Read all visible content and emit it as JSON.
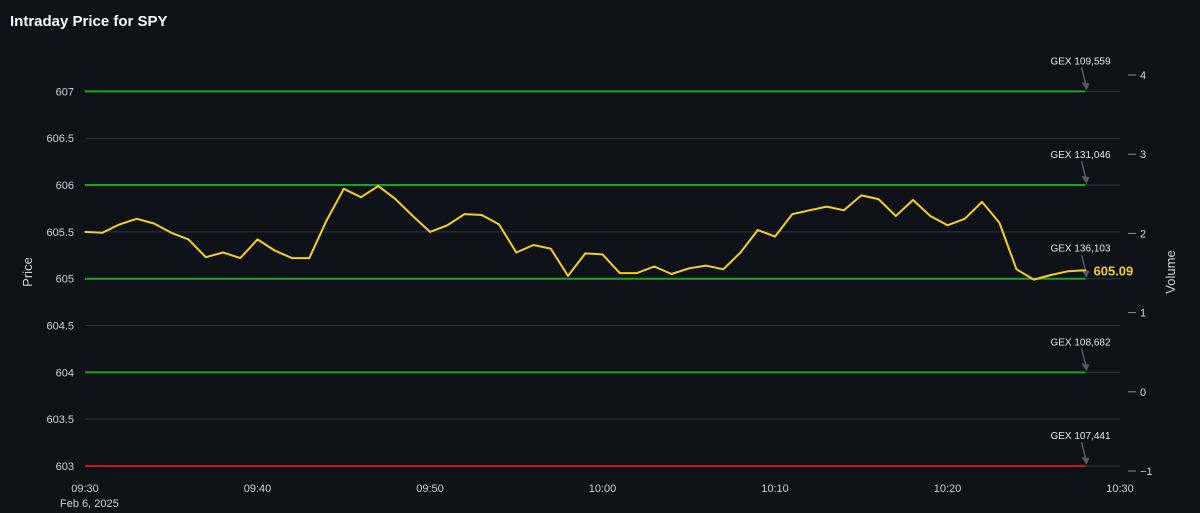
{
  "chart_data": {
    "type": "line",
    "title": "Intraday Price for SPY",
    "ylabel": "Price",
    "y2label": "Volume",
    "date_label": "Feb 6, 2025",
    "x_range": [
      "09:30",
      "10:30"
    ],
    "ylim": [
      603,
      607.25
    ],
    "y2lim": [
      -1,
      4
    ],
    "grid": true,
    "x_ticks": [
      "09:30",
      "09:40",
      "09:50",
      "10:00",
      "10:10",
      "10:20",
      "10:30"
    ],
    "y_ticks": [
      "607",
      "606.5",
      "606",
      "605.5",
      "605",
      "604.5",
      "604",
      "603.5",
      "603"
    ],
    "y2_ticks": [
      "4",
      "3",
      "2",
      "1",
      "0",
      "−1"
    ],
    "series": [
      {
        "color": "#f5d017",
        "x": [
          "09:30",
          "09:31",
          "09:32",
          "09:33",
          "09:34",
          "09:35",
          "09:36",
          "09:37",
          "09:38",
          "09:39",
          "09:40",
          "09:41",
          "09:42",
          "09:43",
          "09:44",
          "09:45",
          "09:46",
          "09:47",
          "09:48",
          "09:49",
          "09:50",
          "09:51",
          "09:52",
          "09:53",
          "09:54",
          "09:55",
          "09:56",
          "09:57",
          "09:58",
          "09:59",
          "10:00",
          "10:01",
          "10:02",
          "10:03",
          "10:04",
          "10:05",
          "10:06",
          "10:07",
          "10:08",
          "10:09",
          "10:10",
          "10:11",
          "10:12",
          "10:13",
          "10:14",
          "10:15",
          "10:16",
          "10:17",
          "10:18",
          "10:19",
          "10:20",
          "10:21",
          "10:22",
          "10:23",
          "10:24",
          "10:25",
          "10:26",
          "10:27",
          "10:28"
        ],
        "y": [
          605.5,
          605.49,
          605.58,
          605.64,
          605.59,
          605.49,
          605.42,
          605.23,
          605.28,
          605.22,
          605.42,
          605.3,
          605.22,
          605.22,
          605.62,
          605.96,
          605.87,
          605.99,
          605.85,
          605.67,
          605.5,
          605.57,
          605.69,
          605.68,
          605.58,
          605.28,
          605.36,
          605.32,
          605.03,
          605.27,
          605.26,
          605.06,
          605.06,
          605.13,
          605.05,
          605.11,
          605.14,
          605.1,
          605.28,
          605.52,
          605.45,
          605.69,
          605.73,
          605.77,
          605.73,
          605.89,
          605.85,
          605.67,
          605.84,
          605.67,
          605.57,
          605.64,
          605.82,
          605.6,
          605.1,
          604.99,
          605.04,
          605.08,
          605.09
        ]
      }
    ],
    "last_price": "605.09",
    "last_price_value": 605.09,
    "gex_levels": [
      {
        "price": 607,
        "label": "GEX 109,559",
        "color": "#1fa31f"
      },
      {
        "price": 606,
        "label": "GEX 131,046",
        "color": "#1fa31f"
      },
      {
        "price": 605,
        "label": "GEX 136,103",
        "color": "#1fa31f"
      },
      {
        "price": 604,
        "label": "GEX 108,682",
        "color": "#1fa31f"
      },
      {
        "price": 603,
        "label": "GEX 107,441",
        "color": "#c0181c"
      }
    ]
  }
}
